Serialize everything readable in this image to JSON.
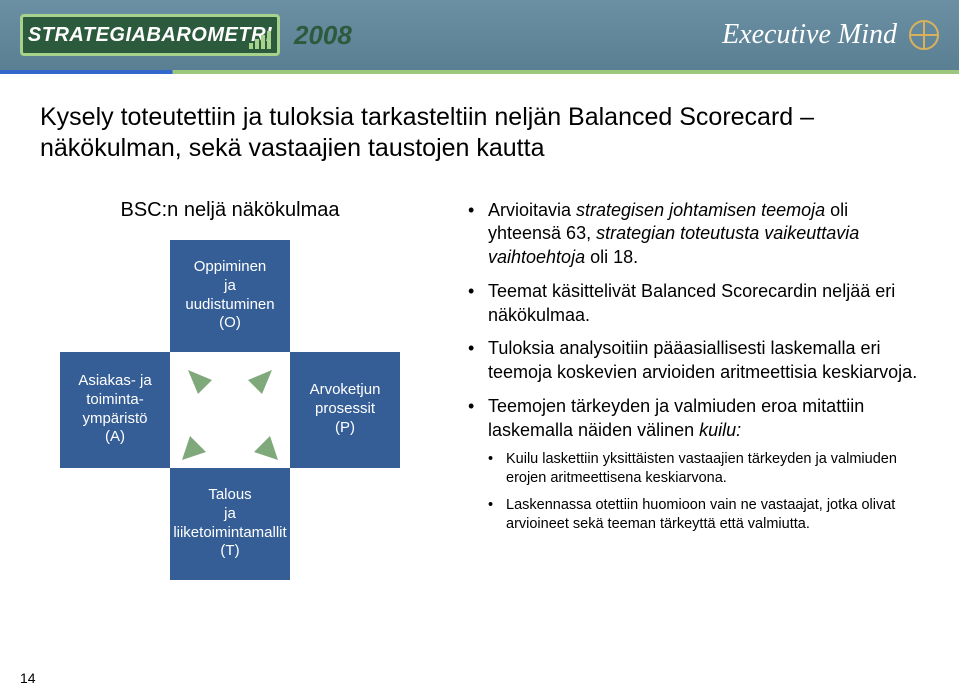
{
  "header": {
    "badge_text": "STRATEGIABAROMETRI",
    "year": "2008",
    "right_brand": "Executive Mind"
  },
  "title": "Kysely toteutettiin ja tuloksia tarkasteltiin neljän Balanced Scorecard –näkökulman, sekä vastaajien taustojen kautta",
  "bsc": {
    "caption": "BSC:n neljä näkökulmaa",
    "top": "Oppiminen\nja\nuudistuminen\n(O)",
    "left": "Asiakas- ja\ntoiminta-\nympäristö\n(A)",
    "right": "Arvoketjun\nprosessit\n(P)",
    "bottom": "Talous\nja\nliiketoimintamallit\n(T)",
    "box_color": "#355e96",
    "arrow_color": "#7fa97a"
  },
  "bullets": [
    {
      "text": "Arvioitavia strategisen johtamisen teemoja oli yhteensä 63, strategian toteutusta vaikeuttavia vaihtoehtoja oli 18."
    },
    {
      "text": "Teemat käsittelivät Balanced Scorecardin neljää eri näkökulmaa."
    },
    {
      "text": "Tuloksia analysoitiin pääasiallisesti laskemalla eri teemoja koskevien arvioiden aritmeettisia keskiarvoja."
    },
    {
      "text": "Teemojen tärkeyden ja valmiuden eroa mitattiin laskemalla näiden välinen kuilu:",
      "sub": [
        "Kuilu laskettiin yksittäisten vastaajien tärkeyden ja valmiuden erojen aritmeettisena keskiarvona.",
        "Laskennassa otettiin huomioon vain ne vastaajat, jotka olivat arvioineet sekä teeman tärkeyttä että valmiutta."
      ]
    }
  ],
  "page_number": "14"
}
